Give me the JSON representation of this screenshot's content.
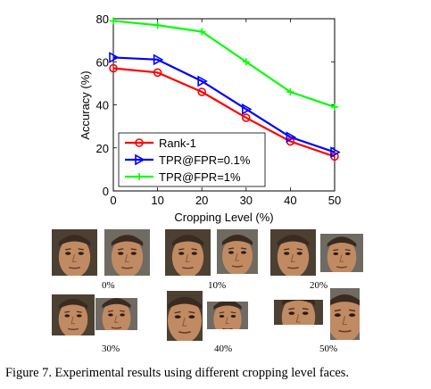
{
  "chart_data": {
    "type": "line",
    "x": [
      0,
      10,
      20,
      30,
      40,
      50
    ],
    "xlabel": "Cropping Level (%)",
    "ylabel": "Accuracy (%)",
    "xlim": [
      0,
      50
    ],
    "ylim": [
      0,
      80
    ],
    "xticks": [
      "0",
      "10",
      "20",
      "30",
      "40",
      "50"
    ],
    "yticks": [
      "0",
      "20",
      "40",
      "60",
      "80"
    ],
    "grid": false,
    "legend_position": "bottom-left",
    "series": [
      {
        "name": "Rank-1",
        "values": [
          57,
          55,
          46,
          34,
          23,
          16
        ],
        "color": "#ff0000",
        "marker": "circle"
      },
      {
        "name": "TPR@FPR=0.1%",
        "values": [
          62,
          61,
          51,
          38,
          25,
          18
        ],
        "color": "#0000ff",
        "marker": "triangle-right"
      },
      {
        "name": "TPR@FPR=1%",
        "values": [
          79,
          77,
          74,
          60,
          46,
          39
        ],
        "color": "#00ff00",
        "marker": "plus"
      }
    ]
  },
  "faces": {
    "skin_color": "#c08a63",
    "hair_color": "#3a2a20",
    "labels": [
      "0%",
      "10%",
      "20%",
      "30%",
      "40%",
      "50%"
    ]
  },
  "caption": "Figure 7. Experimental results using different cropping level faces."
}
